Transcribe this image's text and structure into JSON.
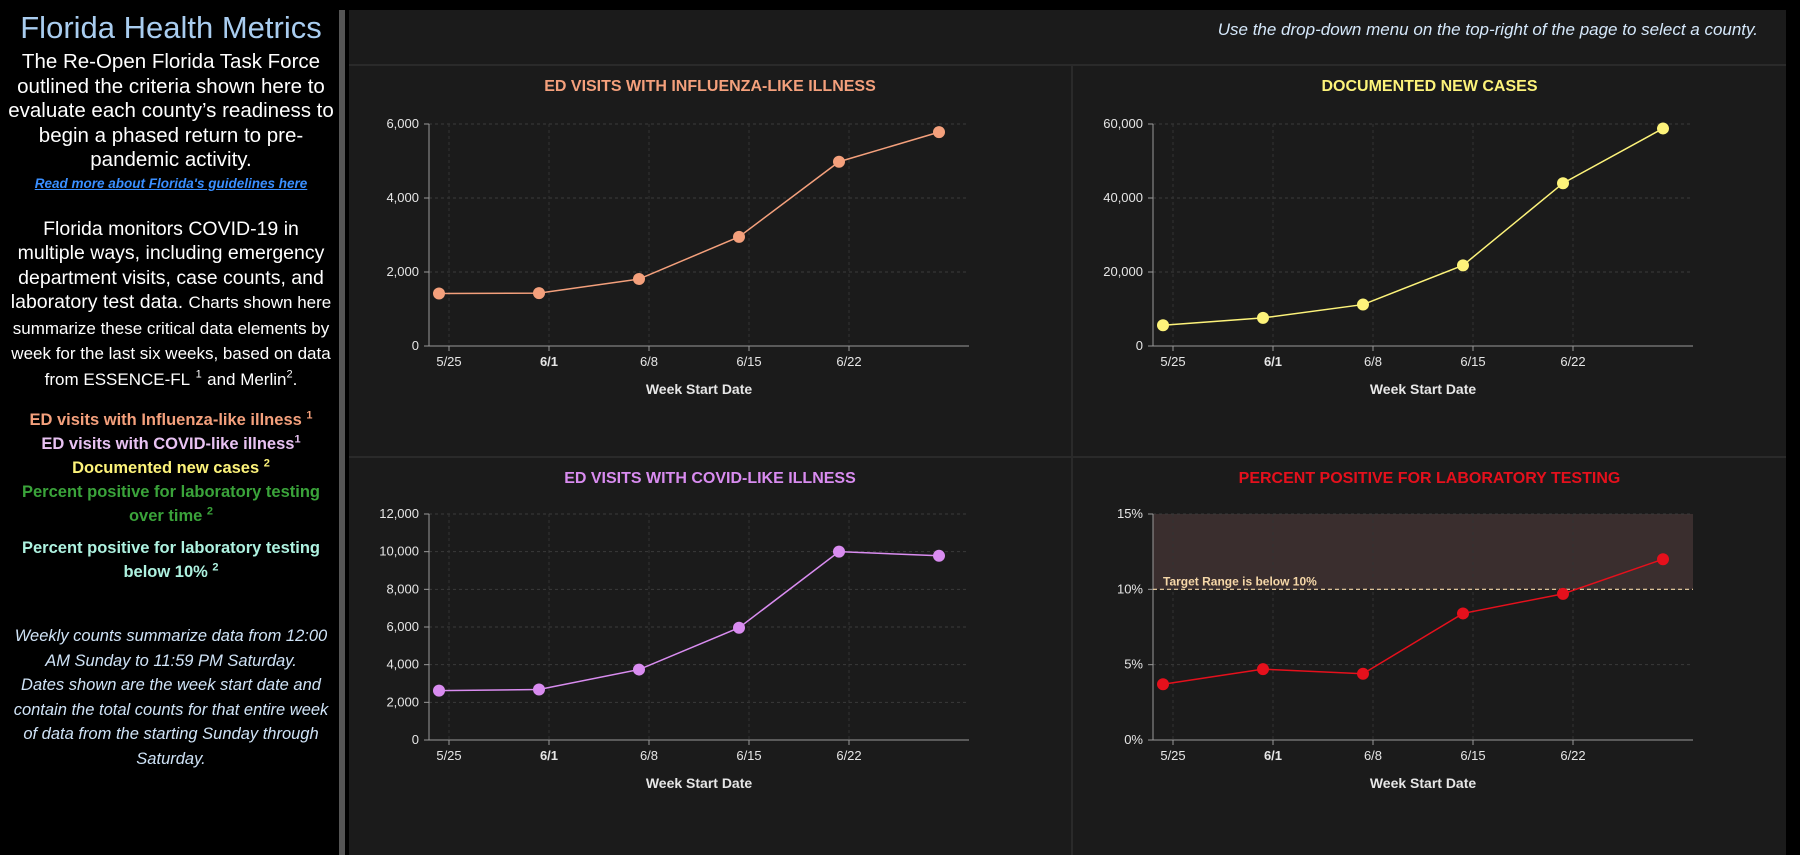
{
  "sidebar": {
    "title": "Florida Health Metrics",
    "intro": "The Re-Open Florida Task Force outlined the criteria shown here to evaluate each county’s readiness to begin a phased return to pre-pandemic activity.",
    "link": "Read more about Florida's guidelines here",
    "para_large": "Florida monitors COVID-19 in multiple ways, including emergency department visits, case counts, and laboratory test data.",
    "para_small_before": "Charts shown here summarize these critical data elements by week for the last six weeks, based on data from ESSENCE-FL",
    "sup1": "1",
    "para_and": "and Merlin",
    "sup2": "2",
    "para_end": ".",
    "legend": [
      {
        "text": "ED visits with Influenza-like illness",
        "sup": "1",
        "color": "#f4a07c"
      },
      {
        "text": "ED visits with COVID-like illness",
        "sup": "1",
        "color": "#e8c2f2"
      },
      {
        "text": "Documented new cases",
        "sup": "2",
        "color": "#fdf37a"
      },
      {
        "text": "Percent positive for laboratory testing over time",
        "sup": "2",
        "color": "#3aa33a"
      },
      {
        "text": "Percent positive for laboratory testing below 10%",
        "sup": "2",
        "color": "#aef2e0"
      }
    ],
    "notes1": "Weekly counts summarize data from 12:00 AM Sunday to 11:59 PM Saturday.",
    "notes2": "Dates shown are the week start date and contain the total counts for that entire week of data from the starting Sunday through Saturday."
  },
  "main": {
    "instruction": "Use the drop-down menu on the top-right of the page to select a county."
  },
  "chart_data": [
    {
      "id": "ili",
      "type": "line",
      "title": "ED VISITS WITH INFLUENZA-LIKE ILLNESS",
      "color": "#f4a07c",
      "xlabel": "Week Start Date",
      "ylabel": "",
      "x": [
        -0.1,
        0.9,
        1.9,
        2.9,
        3.9,
        4.9
      ],
      "values": [
        1420,
        1430,
        1810,
        2950,
        4980,
        5780
      ],
      "ylim": [
        0,
        6000
      ],
      "yticks": [
        0,
        2000,
        4000,
        6000
      ],
      "ytick_labels": [
        "0",
        "2,000",
        "4,000",
        "6,000"
      ],
      "xlim": [
        -0.2,
        5.2
      ],
      "xticks": [
        0,
        1,
        2,
        3,
        4
      ],
      "xtick_labels": [
        "5/25",
        "6/1",
        "6/8",
        "6/15",
        "6/22"
      ],
      "bold_xtick": "6/1",
      "grid": true
    },
    {
      "id": "cases",
      "type": "line",
      "title": "DOCUMENTED NEW CASES",
      "color": "#fdf37a",
      "xlabel": "Week Start Date",
      "ylabel": "",
      "x": [
        -0.1,
        0.9,
        1.9,
        2.9,
        3.9,
        4.9
      ],
      "values": [
        5600,
        7600,
        11200,
        21800,
        44000,
        58800
      ],
      "ylim": [
        0,
        60000
      ],
      "yticks": [
        0,
        20000,
        40000,
        60000
      ],
      "ytick_labels": [
        "0",
        "20,000",
        "40,000",
        "60,000"
      ],
      "xlim": [
        -0.2,
        5.2
      ],
      "xticks": [
        0,
        1,
        2,
        3,
        4
      ],
      "xtick_labels": [
        "5/25",
        "6/1",
        "6/8",
        "6/15",
        "6/22"
      ],
      "bold_xtick": "6/1",
      "grid": true
    },
    {
      "id": "cli",
      "type": "line",
      "title": "ED VISITS WITH COVID-LIKE ILLNESS",
      "color": "#d98cf0",
      "xlabel": "Week Start Date",
      "ylabel": "",
      "x": [
        -0.1,
        0.9,
        1.9,
        2.9,
        3.9,
        4.9
      ],
      "values": [
        2620,
        2680,
        3740,
        5960,
        10000,
        9780
      ],
      "ylim": [
        0,
        12000
      ],
      "yticks": [
        0,
        2000,
        4000,
        6000,
        8000,
        10000,
        12000
      ],
      "ytick_labels": [
        "0",
        "2,000",
        "4,000",
        "6,000",
        "8,000",
        "10,000",
        "12,000"
      ],
      "xlim": [
        -0.2,
        5.2
      ],
      "xticks": [
        0,
        1,
        2,
        3,
        4
      ],
      "xtick_labels": [
        "5/25",
        "6/1",
        "6/8",
        "6/15",
        "6/22"
      ],
      "bold_xtick": "6/1",
      "grid": true
    },
    {
      "id": "pct",
      "type": "line",
      "title": "PERCENT POSITIVE FOR LABORATORY TESTING",
      "color": "#e5101c",
      "xlabel": "Week Start Date",
      "ylabel": "",
      "x": [
        -0.1,
        0.9,
        1.9,
        2.9,
        3.9,
        4.9
      ],
      "values": [
        3.7,
        4.7,
        4.4,
        8.4,
        9.7,
        12.0
      ],
      "ylim": [
        0,
        15
      ],
      "yticks": [
        0,
        5,
        10,
        15
      ],
      "ytick_labels": [
        "0%",
        "5%",
        "10%",
        "15%"
      ],
      "xlim": [
        -0.2,
        5.2
      ],
      "xticks": [
        0,
        1,
        2,
        3,
        4
      ],
      "xtick_labels": [
        "5/25",
        "6/1",
        "6/8",
        "6/15",
        "6/22"
      ],
      "bold_xtick": "6/1",
      "grid": true,
      "threshold": 10,
      "threshold_label": "Target Range is below 10%",
      "threshold_color": "#f5d7a8",
      "shade_above_threshold": "#3a2e2e"
    }
  ]
}
